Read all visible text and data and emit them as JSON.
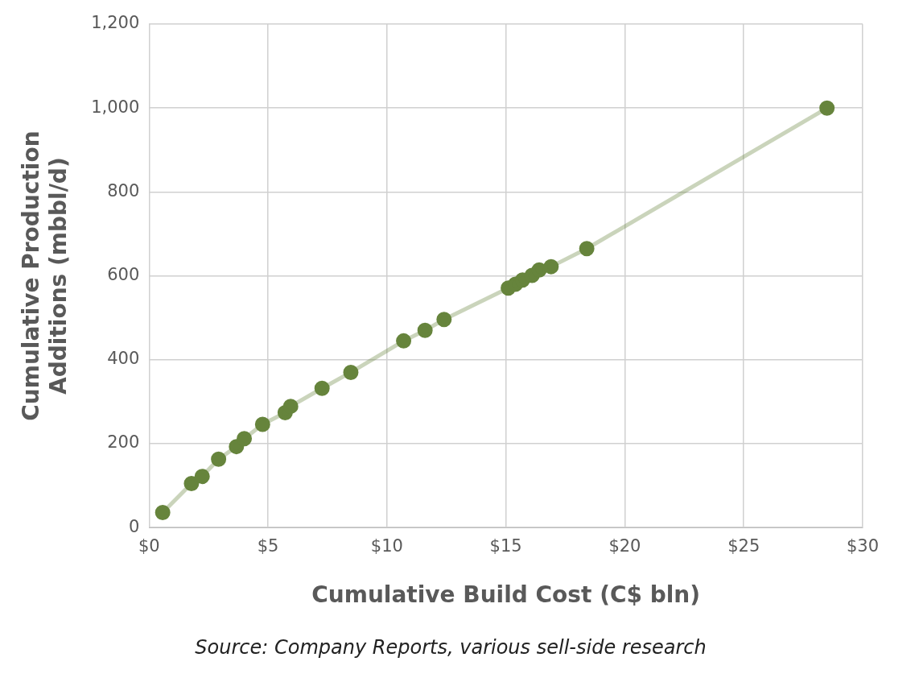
{
  "chart_data": {
    "type": "line",
    "xlabel": "Cumulative Build Cost (C$ bln)",
    "ylabel": "Cumulative Production Additions (mbbl/d)",
    "annotations": [
      "Source: Company Reports, various sell-side research"
    ],
    "x": [
      0.57,
      1.78,
      2.23,
      2.92,
      3.67,
      4.0,
      4.77,
      5.72,
      5.95,
      7.27,
      8.48,
      10.7,
      11.6,
      12.4,
      15.1,
      15.4,
      15.7,
      16.1,
      16.4,
      16.9,
      18.4,
      28.5
    ],
    "series": [
      {
        "color": "#66843c",
        "values": [
          36,
          105,
          122,
          163,
          193,
          212,
          246,
          274,
          289,
          332,
          370,
          445,
          470,
          496,
          571,
          580,
          590,
          601,
          614,
          622,
          665,
          1000
        ]
      }
    ],
    "xlim": [
      0,
      30
    ],
    "xticks": [
      {
        "value": 0,
        "label": "$0"
      },
      {
        "value": 5,
        "label": "$5"
      },
      {
        "value": 10,
        "label": "$10"
      },
      {
        "value": 15,
        "label": "$15"
      },
      {
        "value": 20,
        "label": "$20"
      },
      {
        "value": 25,
        "label": "$25"
      },
      {
        "value": 30,
        "label": "$30"
      }
    ],
    "ylim": [
      0,
      1200
    ],
    "yticks": [
      0,
      200,
      400,
      600,
      800,
      {
        "value": 1000,
        "label": "1,000"
      },
      {
        "value": 1200,
        "label": "1,200"
      }
    ],
    "grid": true,
    "marker": "circle",
    "line_style": "solid",
    "legend": false
  }
}
